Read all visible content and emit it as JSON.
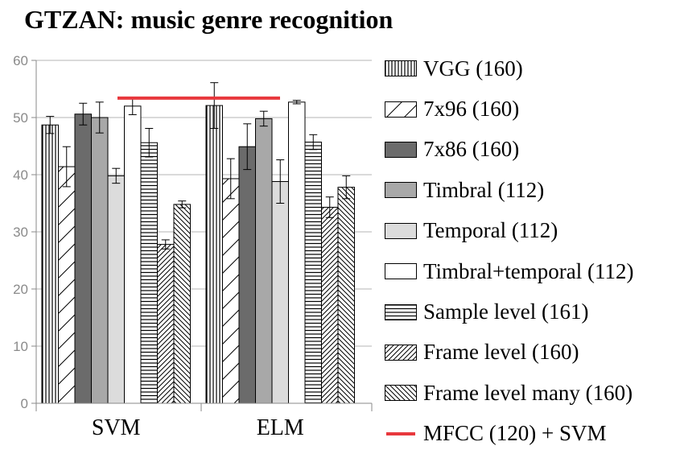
{
  "title": "GTZAN: music genre recognition",
  "chart_data": {
    "type": "bar",
    "title": "GTZAN: music genre recognition",
    "categories": [
      "SVM",
      "ELM"
    ],
    "ylim": [
      0,
      60
    ],
    "yticks": [
      0,
      10,
      20,
      30,
      40,
      50,
      60
    ],
    "grid": true,
    "legend_position": "right",
    "series": [
      {
        "name": "VGG (160)",
        "pattern": "vertical",
        "values": [
          48.7,
          52.1
        ],
        "errors": [
          1.5,
          4.0
        ]
      },
      {
        "name": "7x96 (160)",
        "pattern": "diagonal-sparse",
        "values": [
          41.4,
          39.3
        ],
        "errors": [
          3.5,
          3.5
        ]
      },
      {
        "name": "7x86 (160)",
        "pattern": "solid-dark",
        "values": [
          50.6,
          44.9
        ],
        "errors": [
          1.9,
          4.0
        ]
      },
      {
        "name": "Timbral (112)",
        "pattern": "solid-mid",
        "values": [
          50.0,
          49.8
        ],
        "errors": [
          2.7,
          1.3
        ]
      },
      {
        "name": "Temporal (112)",
        "pattern": "solid-light",
        "values": [
          39.8,
          38.8
        ],
        "errors": [
          1.3,
          3.8
        ]
      },
      {
        "name": "Timbral+temporal (112)",
        "pattern": "white",
        "values": [
          52.0,
          52.7
        ],
        "errors": [
          1.5,
          0.3
        ]
      },
      {
        "name": "Sample level (161)",
        "pattern": "horizontal",
        "values": [
          45.6,
          45.7
        ],
        "errors": [
          2.5,
          1.3
        ]
      },
      {
        "name": "Frame level (160)",
        "pattern": "diagonal-dense",
        "values": [
          27.8,
          34.3
        ],
        "errors": [
          0.8,
          1.8
        ]
      },
      {
        "name": "Frame level many (160)",
        "pattern": "backdiagonal-dense",
        "values": [
          34.8,
          37.8
        ],
        "errors": [
          0.6,
          2.0
        ]
      }
    ],
    "reference_line": {
      "name": "MFCC (120) + SVM",
      "value": 53.4,
      "color": "#e8383d"
    }
  }
}
